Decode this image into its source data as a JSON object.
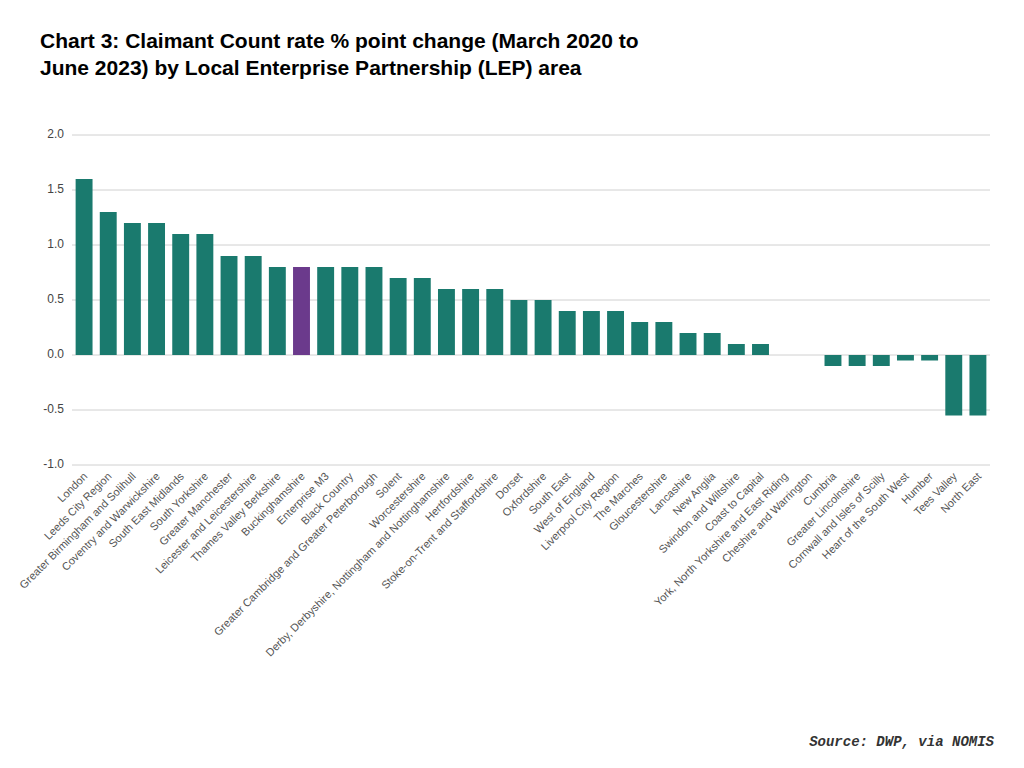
{
  "chart_data": {
    "type": "bar",
    "title": "Chart 3: Claimant Count rate % point change (March 2020 to\nJune 2023) by Local Enterprise Partnership (LEP) area",
    "source": "Source: DWP, via NOMIS",
    "categories": [
      "London",
      "Leeds City Region",
      "Greater Birmingham and Solihull",
      "Coventry and Warwickshire",
      "South East Midlands",
      "South Yorkshire",
      "Greater Manchester",
      "Leicester and Leicestershire",
      "Thames Valley Berkshire",
      "Buckinghamshire",
      "Enterprise M3",
      "Black Country",
      "Greater Cambridge and Greater Peterborough",
      "Solent",
      "Worcestershire",
      "Derby, Derbyshire, Nottingham and Nottinghamshire",
      "Hertfordshire",
      "Stoke-on-Trent and Staffordshire",
      "Dorset",
      "Oxfordshire",
      "South East",
      "West of England",
      "Liverpool City Region",
      "The Marches",
      "Gloucestershire",
      "Lancashire",
      "New Anglia",
      "Swindon and Wiltshire",
      "Coast to Capital",
      "York, North Yorkshire and East Riding",
      "Cheshire and Warrington",
      "Cumbria",
      "Greater Lincolnshire",
      "Cornwall and Isles of Scilly",
      "Heart of the South West",
      "Humber",
      "Tees Valley",
      "North East"
    ],
    "values": [
      1.6,
      1.3,
      1.2,
      1.2,
      1.1,
      1.1,
      0.9,
      0.9,
      0.8,
      0.8,
      0.8,
      0.8,
      0.8,
      0.7,
      0.7,
      0.6,
      0.6,
      0.6,
      0.5,
      0.5,
      0.4,
      0.4,
      0.4,
      0.3,
      0.3,
      0.2,
      0.2,
      0.1,
      0.1,
      0.0,
      0.0,
      -0.1,
      -0.1,
      -0.1,
      -0.05,
      -0.05,
      -0.55,
      -0.55
    ],
    "colors": [
      "#1a7a6e",
      "#1a7a6e",
      "#1a7a6e",
      "#1a7a6e",
      "#1a7a6e",
      "#1a7a6e",
      "#1a7a6e",
      "#1a7a6e",
      "#1a7a6e",
      "#6b3a8c",
      "#1a7a6e",
      "#1a7a6e",
      "#1a7a6e",
      "#1a7a6e",
      "#1a7a6e",
      "#1a7a6e",
      "#1a7a6e",
      "#1a7a6e",
      "#1a7a6e",
      "#1a7a6e",
      "#1a7a6e",
      "#1a7a6e",
      "#1a7a6e",
      "#1a7a6e",
      "#1a7a6e",
      "#1a7a6e",
      "#1a7a6e",
      "#1a7a6e",
      "#1a7a6e",
      "#1a7a6e",
      "#1a7a6e",
      "#1a7a6e",
      "#1a7a6e",
      "#1a7a6e",
      "#1a7a6e",
      "#1a7a6e",
      "#1a7a6e",
      "#1a7a6e"
    ],
    "ylim": [
      -1.0,
      2.0
    ],
    "yticks": [
      {
        "value": -1.0,
        "label": "-1.0"
      },
      -0.5,
      {
        "value": 0.0,
        "label": "0.0"
      },
      0.5,
      {
        "value": 1.0,
        "label": "1.0"
      },
      1.5,
      {
        "value": 2.0,
        "label": "2.0"
      }
    ],
    "grid": true
  }
}
